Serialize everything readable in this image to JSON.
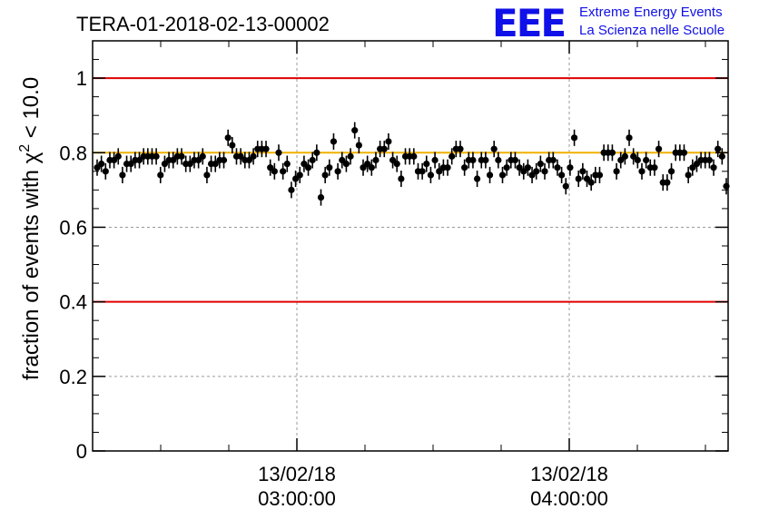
{
  "header": {
    "run_title": "TERA-01-2018-02-13-00002",
    "logo_letters": "EEE",
    "logo_line1": "Extreme Energy Events",
    "logo_line2": "La Scienza nelle Scuole",
    "logo_color": "#1010e8"
  },
  "chart_data": {
    "type": "scatter",
    "title": "TERA-01-2018-02-13-00002",
    "ylabel_prefix": "fraction of events with ",
    "ylabel_symbol": "χ",
    "ylabel_sup": "2",
    "ylabel_suffix": " < 10.0",
    "ylim": [
      0,
      1.1
    ],
    "yticks": [
      "0",
      "0.2",
      "0.4",
      "0.6",
      "0.8",
      "1"
    ],
    "xlim": [
      "13/02/18 02:15:00",
      "13/02/18 04:35:00"
    ],
    "xticks": [
      {
        "date": "13/02/18",
        "time": "03:00:00"
      },
      {
        "date": "13/02/18",
        "time": "04:00:00"
      }
    ],
    "grid": true,
    "reference_lines": [
      {
        "y": 1.0,
        "color": "#e00000"
      },
      {
        "y": 0.4,
        "color": "#e00000"
      },
      {
        "y": 0.8,
        "color": "#f0b000"
      }
    ],
    "point_color": "#000000",
    "series": [
      {
        "y": [
          0.76,
          0.77,
          0.75,
          0.78,
          0.78,
          0.79,
          0.74,
          0.77,
          0.77,
          0.78,
          0.78,
          0.79,
          0.79,
          0.79,
          0.79,
          0.74,
          0.77,
          0.78,
          0.78,
          0.79,
          0.79,
          0.77,
          0.77,
          0.78,
          0.78,
          0.79,
          0.74,
          0.77,
          0.77,
          0.78,
          0.78,
          0.84,
          0.82,
          0.79,
          0.79,
          0.78,
          0.78,
          0.79,
          0.81,
          0.81,
          0.81,
          0.76,
          0.75,
          0.8,
          0.75,
          0.77,
          0.7,
          0.73,
          0.74,
          0.77,
          0.76,
          0.78,
          0.8,
          0.68,
          0.74,
          0.76,
          0.83,
          0.75,
          0.78,
          0.77,
          0.79,
          0.86,
          0.82,
          0.76,
          0.77,
          0.76,
          0.78,
          0.81,
          0.81,
          0.83,
          0.78,
          0.77,
          0.73,
          0.79,
          0.79,
          0.79,
          0.75,
          0.75,
          0.77,
          0.74,
          0.78,
          0.75,
          0.76,
          0.76,
          0.79,
          0.81,
          0.81,
          0.76,
          0.78,
          0.78,
          0.73,
          0.78,
          0.78,
          0.74,
          0.81,
          0.78,
          0.74,
          0.76,
          0.78,
          0.78,
          0.76,
          0.75,
          0.76,
          0.74,
          0.75,
          0.77,
          0.75,
          0.78,
          0.78,
          0.76,
          0.74,
          0.71,
          0.76,
          0.84,
          0.73,
          0.75,
          0.73,
          0.72,
          0.74,
          0.74,
          0.8,
          0.8,
          0.8,
          0.75,
          0.78,
          0.79,
          0.84,
          0.79,
          0.78,
          0.75,
          0.78,
          0.76,
          0.76,
          0.81,
          0.72,
          0.72,
          0.75,
          0.8,
          0.8,
          0.8,
          0.74,
          0.76,
          0.77,
          0.78,
          0.78,
          0.78,
          0.76,
          0.81,
          0.79,
          0.71
        ],
        "error": 0.022
      }
    ]
  }
}
